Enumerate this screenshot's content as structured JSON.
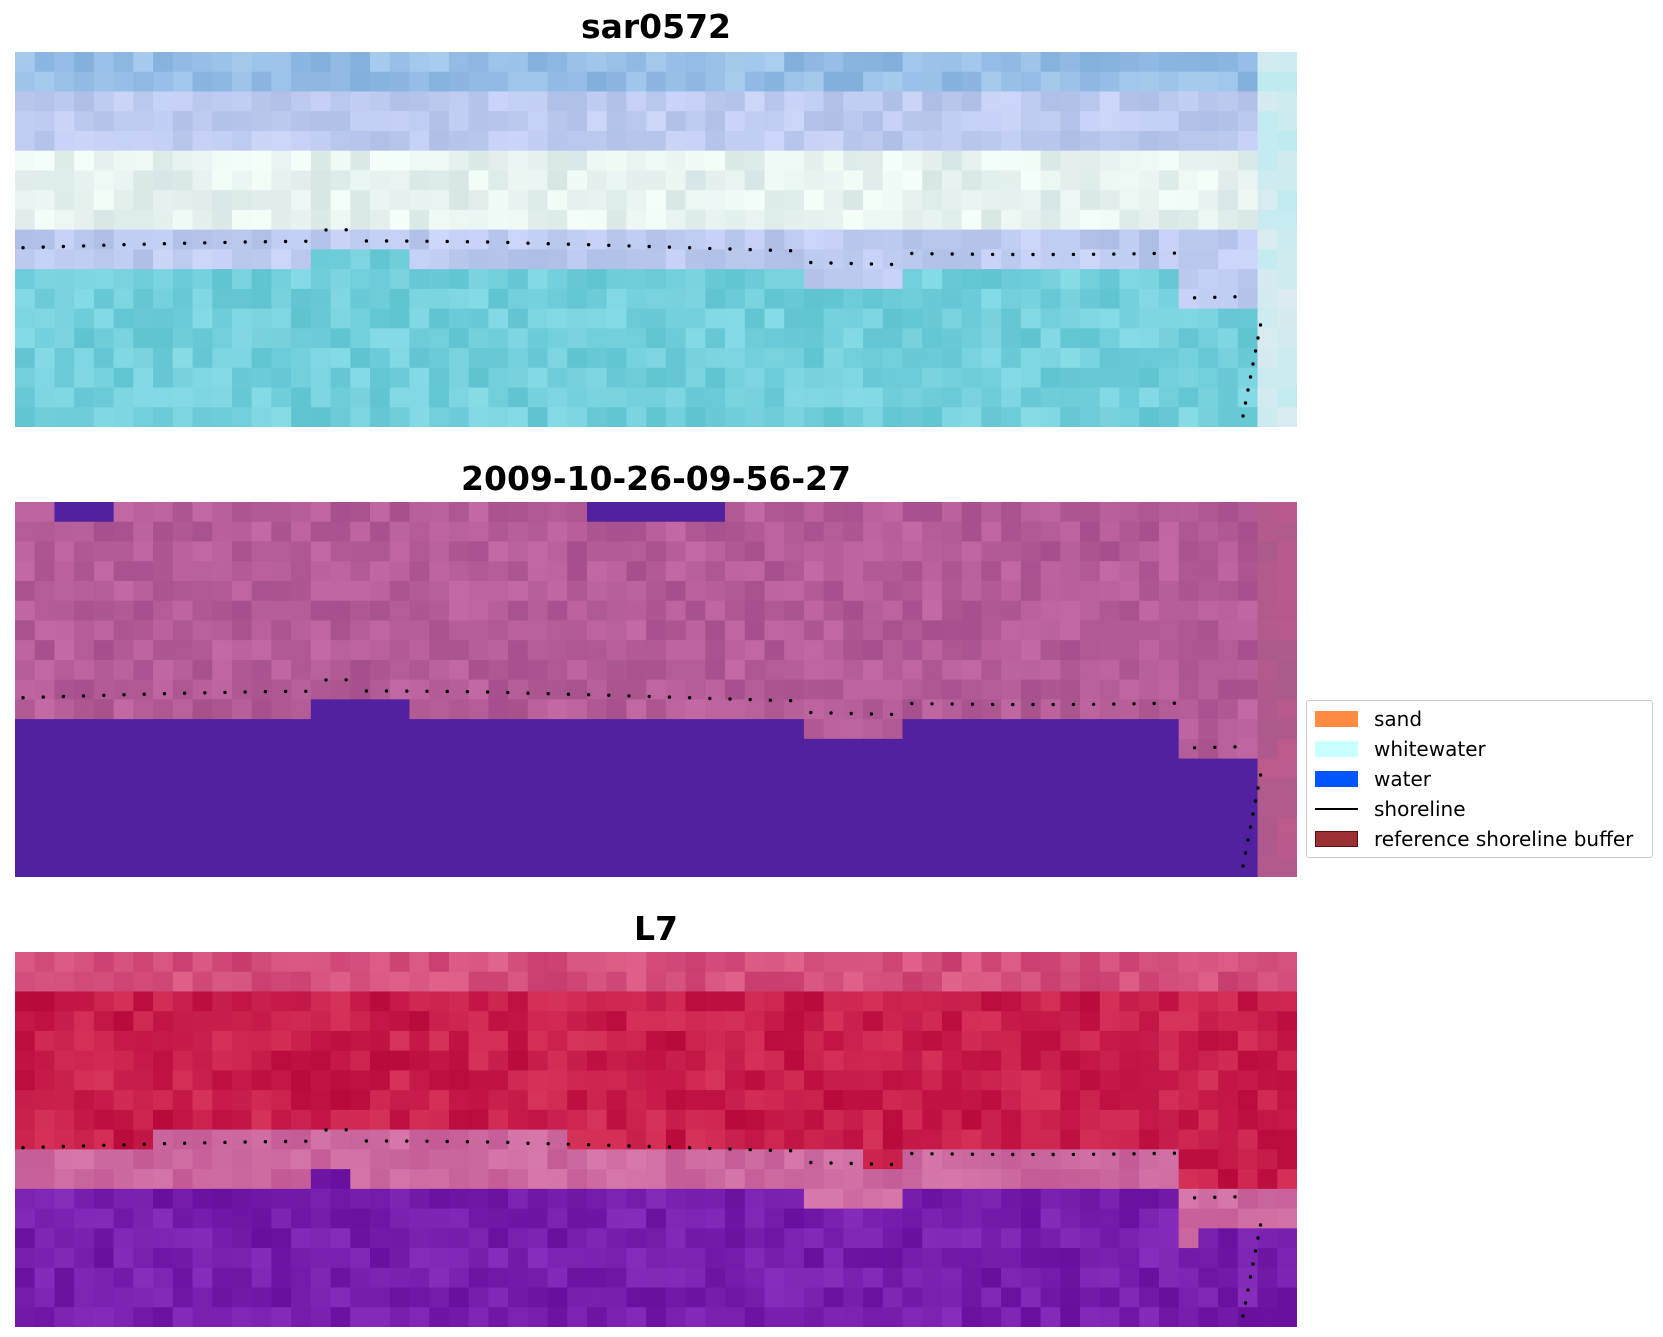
{
  "panels": [
    {
      "title": "sar0572",
      "style": "rgb"
    },
    {
      "title": "2009-10-26-09-56-27",
      "style": "classified"
    },
    {
      "title": "L7",
      "style": "index"
    }
  ],
  "legend": {
    "items": [
      {
        "label": "sand",
        "color": "#ff8c42",
        "kind": "patch"
      },
      {
        "label": "whitewater",
        "color": "#c8ffff",
        "kind": "patch"
      },
      {
        "label": "water",
        "color": "#0055ff",
        "kind": "patch"
      },
      {
        "label": "shoreline",
        "color": "#000000",
        "kind": "line"
      },
      {
        "label": "reference shoreline buffer",
        "color": "#9b3033",
        "kind": "patch",
        "edge": "#5a1010"
      }
    ]
  }
}
